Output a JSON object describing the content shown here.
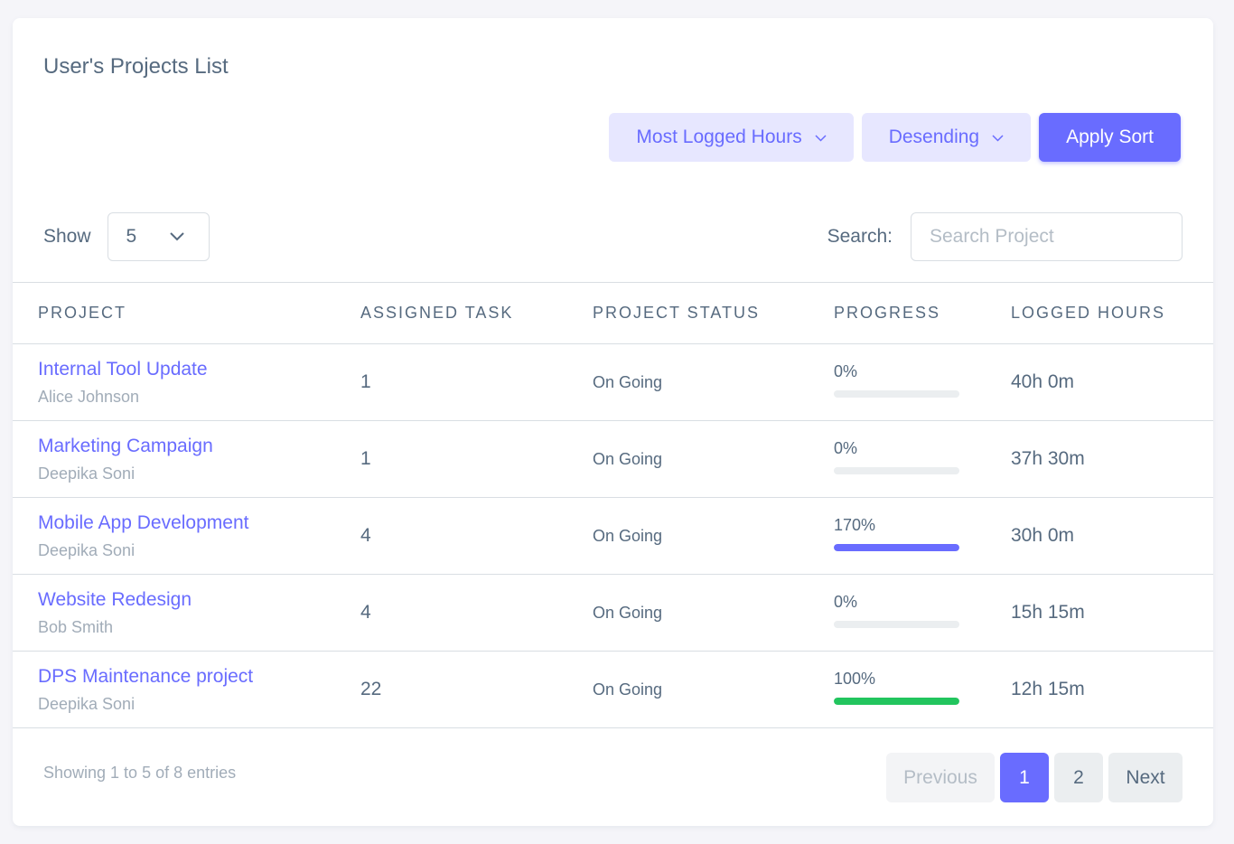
{
  "card": {
    "title": "User's Projects List"
  },
  "sort": {
    "field_value": "Most Logged Hours",
    "order_value": "Desending",
    "apply_label": "Apply Sort"
  },
  "length": {
    "label": "Show",
    "value": "5"
  },
  "search": {
    "label": "Search:",
    "placeholder": "Search Project"
  },
  "table": {
    "headers": [
      "PROJECT",
      "ASSIGNED TASK",
      "PROJECT STATUS",
      "PROGRESS",
      "LOGGED HOURS"
    ],
    "rows": [
      {
        "project": "Internal Tool Update",
        "owner": "Alice Johnson",
        "tasks": "1",
        "status": "On Going",
        "progress_label": "0%",
        "progress_fill": 0,
        "progress_color": "#696cff",
        "hours": "40h 0m"
      },
      {
        "project": "Marketing Campaign",
        "owner": "Deepika Soni",
        "tasks": "1",
        "status": "On Going",
        "progress_label": "0%",
        "progress_fill": 0,
        "progress_color": "#696cff",
        "hours": "37h 30m"
      },
      {
        "project": "Mobile App Development",
        "owner": "Deepika Soni",
        "tasks": "4",
        "status": "On Going",
        "progress_label": "170%",
        "progress_fill": 100,
        "progress_color": "#696cff",
        "hours": "30h 0m"
      },
      {
        "project": "Website Redesign",
        "owner": "Bob Smith",
        "tasks": "4",
        "status": "On Going",
        "progress_label": "0%",
        "progress_fill": 0,
        "progress_color": "#696cff",
        "hours": "15h 15m"
      },
      {
        "project": "DPS Maintenance project",
        "owner": "Deepika Soni",
        "tasks": "22",
        "status": "On Going",
        "progress_label": "100%",
        "progress_fill": 100,
        "progress_color": "#22c55e",
        "hours": "12h 15m"
      }
    ]
  },
  "footer": {
    "info": "Showing 1 to 5 of 8 entries",
    "previous_label": "Previous",
    "pages": [
      "1",
      "2"
    ],
    "active_page": "1",
    "next_label": "Next"
  },
  "colors": {
    "accent": "#696cff",
    "success": "#22c55e",
    "soft_accent": "#e7e7ff"
  },
  "icons": {
    "dropdown": "chevron-down-icon"
  }
}
